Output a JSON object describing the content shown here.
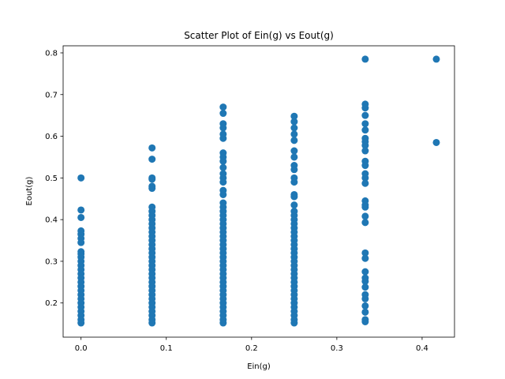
{
  "chart_data": {
    "type": "scatter",
    "title": "Scatter Plot of Ein(g) vs Eout(g)",
    "xlabel": "Ein(g)",
    "ylabel": "Eout(g)",
    "xlim": [
      -0.021,
      0.438
    ],
    "ylim": [
      0.118,
      0.817
    ],
    "xticks": [
      0.0,
      0.1,
      0.2,
      0.3,
      0.4
    ],
    "xtick_labels": [
      "0.0",
      "0.1",
      "0.2",
      "0.3",
      "0.4"
    ],
    "yticks": [
      0.2,
      0.3,
      0.4,
      0.5,
      0.6,
      0.7,
      0.8
    ],
    "ytick_labels": [
      "0.2",
      "0.3",
      "0.4",
      "0.5",
      "0.6",
      "0.7",
      "0.8"
    ],
    "grid": false,
    "marker_color": "#1f77b4",
    "points": [
      {
        "x": 0.0,
        "y": 0.5
      },
      {
        "x": 0.0,
        "y": 0.423
      },
      {
        "x": 0.0,
        "y": 0.405
      },
      {
        "x": 0.0,
        "y": 0.373
      },
      {
        "x": 0.0,
        "y": 0.365
      },
      {
        "x": 0.0,
        "y": 0.355
      },
      {
        "x": 0.0,
        "y": 0.345
      },
      {
        "x": 0.0,
        "y": 0.323
      },
      {
        "x": 0.0,
        "y": 0.318
      },
      {
        "x": 0.0,
        "y": 0.31
      },
      {
        "x": 0.0,
        "y": 0.3
      },
      {
        "x": 0.0,
        "y": 0.29
      },
      {
        "x": 0.0,
        "y": 0.28
      },
      {
        "x": 0.0,
        "y": 0.27
      },
      {
        "x": 0.0,
        "y": 0.26
      },
      {
        "x": 0.0,
        "y": 0.25
      },
      {
        "x": 0.0,
        "y": 0.24
      },
      {
        "x": 0.0,
        "y": 0.23
      },
      {
        "x": 0.0,
        "y": 0.22
      },
      {
        "x": 0.0,
        "y": 0.21
      },
      {
        "x": 0.0,
        "y": 0.2
      },
      {
        "x": 0.0,
        "y": 0.19
      },
      {
        "x": 0.0,
        "y": 0.18
      },
      {
        "x": 0.0,
        "y": 0.17
      },
      {
        "x": 0.0,
        "y": 0.16
      },
      {
        "x": 0.0,
        "y": 0.152
      },
      {
        "x": 0.0833,
        "y": 0.572
      },
      {
        "x": 0.0833,
        "y": 0.545
      },
      {
        "x": 0.0833,
        "y": 0.5
      },
      {
        "x": 0.0833,
        "y": 0.497
      },
      {
        "x": 0.0833,
        "y": 0.48
      },
      {
        "x": 0.0833,
        "y": 0.475
      },
      {
        "x": 0.0833,
        "y": 0.43
      },
      {
        "x": 0.0833,
        "y": 0.42
      },
      {
        "x": 0.0833,
        "y": 0.41
      },
      {
        "x": 0.0833,
        "y": 0.4
      },
      {
        "x": 0.0833,
        "y": 0.39
      },
      {
        "x": 0.0833,
        "y": 0.38
      },
      {
        "x": 0.0833,
        "y": 0.37
      },
      {
        "x": 0.0833,
        "y": 0.36
      },
      {
        "x": 0.0833,
        "y": 0.35
      },
      {
        "x": 0.0833,
        "y": 0.34
      },
      {
        "x": 0.0833,
        "y": 0.33
      },
      {
        "x": 0.0833,
        "y": 0.32
      },
      {
        "x": 0.0833,
        "y": 0.31
      },
      {
        "x": 0.0833,
        "y": 0.3
      },
      {
        "x": 0.0833,
        "y": 0.29
      },
      {
        "x": 0.0833,
        "y": 0.28
      },
      {
        "x": 0.0833,
        "y": 0.27
      },
      {
        "x": 0.0833,
        "y": 0.26
      },
      {
        "x": 0.0833,
        "y": 0.25
      },
      {
        "x": 0.0833,
        "y": 0.24
      },
      {
        "x": 0.0833,
        "y": 0.23
      },
      {
        "x": 0.0833,
        "y": 0.22
      },
      {
        "x": 0.0833,
        "y": 0.21
      },
      {
        "x": 0.0833,
        "y": 0.2
      },
      {
        "x": 0.0833,
        "y": 0.19
      },
      {
        "x": 0.0833,
        "y": 0.18
      },
      {
        "x": 0.0833,
        "y": 0.17
      },
      {
        "x": 0.0833,
        "y": 0.16
      },
      {
        "x": 0.0833,
        "y": 0.152
      },
      {
        "x": 0.1667,
        "y": 0.67
      },
      {
        "x": 0.1667,
        "y": 0.655
      },
      {
        "x": 0.1667,
        "y": 0.63
      },
      {
        "x": 0.1667,
        "y": 0.62
      },
      {
        "x": 0.1667,
        "y": 0.605
      },
      {
        "x": 0.1667,
        "y": 0.595
      },
      {
        "x": 0.1667,
        "y": 0.56
      },
      {
        "x": 0.1667,
        "y": 0.55
      },
      {
        "x": 0.1667,
        "y": 0.54
      },
      {
        "x": 0.1667,
        "y": 0.525
      },
      {
        "x": 0.1667,
        "y": 0.51
      },
      {
        "x": 0.1667,
        "y": 0.5
      },
      {
        "x": 0.1667,
        "y": 0.49
      },
      {
        "x": 0.1667,
        "y": 0.47
      },
      {
        "x": 0.1667,
        "y": 0.46
      },
      {
        "x": 0.1667,
        "y": 0.44
      },
      {
        "x": 0.1667,
        "y": 0.43
      },
      {
        "x": 0.1667,
        "y": 0.42
      },
      {
        "x": 0.1667,
        "y": 0.41
      },
      {
        "x": 0.1667,
        "y": 0.4
      },
      {
        "x": 0.1667,
        "y": 0.39
      },
      {
        "x": 0.1667,
        "y": 0.38
      },
      {
        "x": 0.1667,
        "y": 0.37
      },
      {
        "x": 0.1667,
        "y": 0.36
      },
      {
        "x": 0.1667,
        "y": 0.35
      },
      {
        "x": 0.1667,
        "y": 0.34
      },
      {
        "x": 0.1667,
        "y": 0.33
      },
      {
        "x": 0.1667,
        "y": 0.32
      },
      {
        "x": 0.1667,
        "y": 0.31
      },
      {
        "x": 0.1667,
        "y": 0.3
      },
      {
        "x": 0.1667,
        "y": 0.29
      },
      {
        "x": 0.1667,
        "y": 0.28
      },
      {
        "x": 0.1667,
        "y": 0.27
      },
      {
        "x": 0.1667,
        "y": 0.26
      },
      {
        "x": 0.1667,
        "y": 0.25
      },
      {
        "x": 0.1667,
        "y": 0.24
      },
      {
        "x": 0.1667,
        "y": 0.23
      },
      {
        "x": 0.1667,
        "y": 0.22
      },
      {
        "x": 0.1667,
        "y": 0.21
      },
      {
        "x": 0.1667,
        "y": 0.2
      },
      {
        "x": 0.1667,
        "y": 0.19
      },
      {
        "x": 0.1667,
        "y": 0.18
      },
      {
        "x": 0.1667,
        "y": 0.17
      },
      {
        "x": 0.1667,
        "y": 0.16
      },
      {
        "x": 0.1667,
        "y": 0.152
      },
      {
        "x": 0.25,
        "y": 0.648
      },
      {
        "x": 0.25,
        "y": 0.635
      },
      {
        "x": 0.25,
        "y": 0.62
      },
      {
        "x": 0.25,
        "y": 0.605
      },
      {
        "x": 0.25,
        "y": 0.59
      },
      {
        "x": 0.25,
        "y": 0.565
      },
      {
        "x": 0.25,
        "y": 0.55
      },
      {
        "x": 0.25,
        "y": 0.53
      },
      {
        "x": 0.25,
        "y": 0.52
      },
      {
        "x": 0.25,
        "y": 0.5
      },
      {
        "x": 0.25,
        "y": 0.49
      },
      {
        "x": 0.25,
        "y": 0.46
      },
      {
        "x": 0.25,
        "y": 0.455
      },
      {
        "x": 0.25,
        "y": 0.435
      },
      {
        "x": 0.25,
        "y": 0.42
      },
      {
        "x": 0.25,
        "y": 0.41
      },
      {
        "x": 0.25,
        "y": 0.4
      },
      {
        "x": 0.25,
        "y": 0.39
      },
      {
        "x": 0.25,
        "y": 0.38
      },
      {
        "x": 0.25,
        "y": 0.37
      },
      {
        "x": 0.25,
        "y": 0.36
      },
      {
        "x": 0.25,
        "y": 0.35
      },
      {
        "x": 0.25,
        "y": 0.34
      },
      {
        "x": 0.25,
        "y": 0.33
      },
      {
        "x": 0.25,
        "y": 0.32
      },
      {
        "x": 0.25,
        "y": 0.31
      },
      {
        "x": 0.25,
        "y": 0.3
      },
      {
        "x": 0.25,
        "y": 0.29
      },
      {
        "x": 0.25,
        "y": 0.28
      },
      {
        "x": 0.25,
        "y": 0.27
      },
      {
        "x": 0.25,
        "y": 0.26
      },
      {
        "x": 0.25,
        "y": 0.25
      },
      {
        "x": 0.25,
        "y": 0.24
      },
      {
        "x": 0.25,
        "y": 0.23
      },
      {
        "x": 0.25,
        "y": 0.22
      },
      {
        "x": 0.25,
        "y": 0.21
      },
      {
        "x": 0.25,
        "y": 0.2
      },
      {
        "x": 0.25,
        "y": 0.19
      },
      {
        "x": 0.25,
        "y": 0.18
      },
      {
        "x": 0.25,
        "y": 0.17
      },
      {
        "x": 0.25,
        "y": 0.16
      },
      {
        "x": 0.25,
        "y": 0.152
      },
      {
        "x": 0.3333,
        "y": 0.785
      },
      {
        "x": 0.3333,
        "y": 0.677
      },
      {
        "x": 0.3333,
        "y": 0.668
      },
      {
        "x": 0.3333,
        "y": 0.65
      },
      {
        "x": 0.3333,
        "y": 0.63
      },
      {
        "x": 0.3333,
        "y": 0.615
      },
      {
        "x": 0.3333,
        "y": 0.595
      },
      {
        "x": 0.3333,
        "y": 0.587
      },
      {
        "x": 0.3333,
        "y": 0.578
      },
      {
        "x": 0.3333,
        "y": 0.565
      },
      {
        "x": 0.3333,
        "y": 0.54
      },
      {
        "x": 0.3333,
        "y": 0.53
      },
      {
        "x": 0.3333,
        "y": 0.51
      },
      {
        "x": 0.3333,
        "y": 0.5
      },
      {
        "x": 0.3333,
        "y": 0.487
      },
      {
        "x": 0.3333,
        "y": 0.445
      },
      {
        "x": 0.3333,
        "y": 0.435
      },
      {
        "x": 0.3333,
        "y": 0.43
      },
      {
        "x": 0.3333,
        "y": 0.408
      },
      {
        "x": 0.3333,
        "y": 0.393
      },
      {
        "x": 0.3333,
        "y": 0.32
      },
      {
        "x": 0.3333,
        "y": 0.307
      },
      {
        "x": 0.3333,
        "y": 0.275
      },
      {
        "x": 0.3333,
        "y": 0.26
      },
      {
        "x": 0.3333,
        "y": 0.252
      },
      {
        "x": 0.3333,
        "y": 0.238
      },
      {
        "x": 0.3333,
        "y": 0.22
      },
      {
        "x": 0.3333,
        "y": 0.21
      },
      {
        "x": 0.3333,
        "y": 0.193
      },
      {
        "x": 0.3333,
        "y": 0.178
      },
      {
        "x": 0.3333,
        "y": 0.16
      },
      {
        "x": 0.3333,
        "y": 0.155
      },
      {
        "x": 0.4167,
        "y": 0.785
      },
      {
        "x": 0.4167,
        "y": 0.585
      }
    ]
  }
}
